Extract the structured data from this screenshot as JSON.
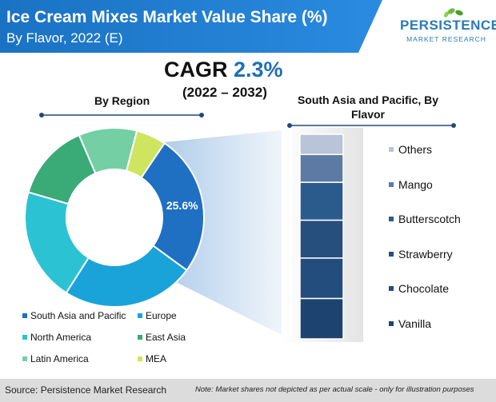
{
  "header": {
    "title": "Ice Cream Mixes Market Value Share (%)",
    "subtitle": "By Flavor, 2022 (E)"
  },
  "logo": {
    "word": "PERSISTENCE",
    "sub": "MARKET RESEARCH"
  },
  "cagr": {
    "label": "CAGR",
    "value": "2.3%",
    "period": "(2022 – 2032)"
  },
  "chart_data": [
    {
      "type": "pie",
      "variant": "donut",
      "title": "By Region",
      "categories": [
        "South Asia and Pacific",
        "Europe",
        "North America",
        "East Asia",
        "Latin America",
        "MEA"
      ],
      "values": [
        25.6,
        24.0,
        20.5,
        14.0,
        10.5,
        5.4
      ],
      "colors": [
        "#1f6fc2",
        "#1aa3d9",
        "#2bc3d4",
        "#3aaa77",
        "#74cfa5",
        "#cfe560"
      ],
      "data_labels": [
        "25.6%",
        "",
        "",
        "",
        "",
        ""
      ],
      "legend_position": "bottom"
    },
    {
      "type": "bar",
      "variant": "stacked-100",
      "title": "South Asia and Pacific, By Flavor",
      "categories": [
        "Vanilla",
        "Chocolate",
        "Strawberry",
        "Butterscotch",
        "Mango",
        "Others"
      ],
      "values": [
        16,
        16,
        15,
        15,
        11,
        8
      ],
      "colors": [
        "#1d4370",
        "#234d7c",
        "#264f7e",
        "#2b5a8c",
        "#5d7aa5",
        "#b9c4d8"
      ],
      "legend_position": "right"
    }
  ],
  "footer": {
    "source": "Source: Persistence Market Research",
    "note": "Note: Market shares not depicted as per actual scale - only for illustration purposes"
  }
}
